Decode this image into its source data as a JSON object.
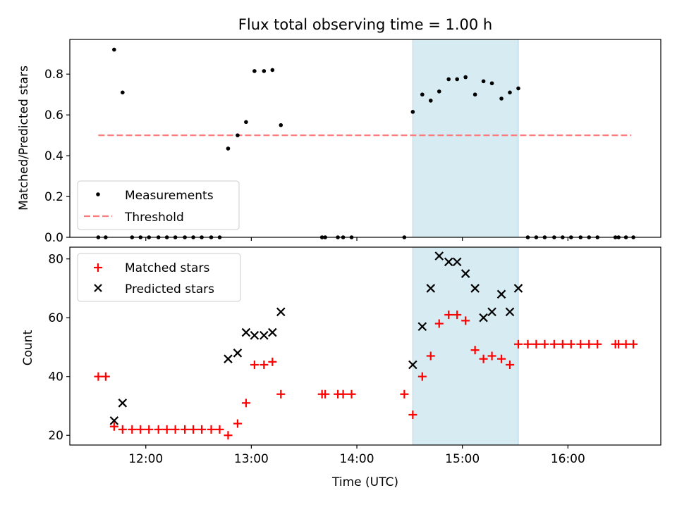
{
  "chart_data": [
    {
      "type": "scatter",
      "title": "Flux total observing time = 1.00 h",
      "xlabel": "",
      "ylabel": "Matched/Predicted stars",
      "ylim": [
        0,
        0.97
      ],
      "xlim_hours": [
        11.28,
        16.88
      ],
      "yticks": [
        0.0,
        0.2,
        0.4,
        0.6,
        0.8
      ],
      "ytick_labels": [
        "0.0",
        "0.2",
        "0.4",
        "0.6",
        "0.8"
      ],
      "highlight_span_hours": [
        14.53,
        15.53
      ],
      "threshold": {
        "name": "Threshold",
        "value": 0.5,
        "x_range_hours": [
          11.55,
          16.6
        ],
        "color": "#ff7a7a"
      },
      "legend": {
        "position": "lower-left",
        "entries": [
          "Measurements",
          "Threshold"
        ]
      },
      "series": [
        {
          "name": "Measurements",
          "color": "#000000",
          "points": [
            [
              11.55,
              0
            ],
            [
              11.62,
              0
            ],
            [
              11.7,
              0.92
            ],
            [
              11.78,
              0.71
            ],
            [
              11.87,
              0
            ],
            [
              11.95,
              0
            ],
            [
              12.03,
              0
            ],
            [
              12.12,
              0
            ],
            [
              12.2,
              0
            ],
            [
              12.28,
              0
            ],
            [
              12.37,
              0
            ],
            [
              12.45,
              0
            ],
            [
              12.53,
              0
            ],
            [
              12.62,
              0
            ],
            [
              12.7,
              0
            ],
            [
              12.78,
              0.435
            ],
            [
              12.87,
              0.5
            ],
            [
              12.95,
              0.565
            ],
            [
              13.03,
              0.815
            ],
            [
              13.12,
              0.815
            ],
            [
              13.2,
              0.82
            ],
            [
              13.28,
              0.55
            ],
            [
              13.67,
              0
            ],
            [
              13.7,
              0
            ],
            [
              13.82,
              0
            ],
            [
              13.87,
              0
            ],
            [
              13.95,
              0
            ],
            [
              14.45,
              0
            ],
            [
              14.53,
              0.615
            ],
            [
              14.62,
              0.7
            ],
            [
              14.7,
              0.67
            ],
            [
              14.78,
              0.715
            ],
            [
              14.87,
              0.775
            ],
            [
              14.95,
              0.775
            ],
            [
              15.03,
              0.785
            ],
            [
              15.12,
              0.7
            ],
            [
              15.2,
              0.765
            ],
            [
              15.28,
              0.755
            ],
            [
              15.37,
              0.68
            ],
            [
              15.45,
              0.71
            ],
            [
              15.53,
              0.73
            ],
            [
              15.62,
              0
            ],
            [
              15.7,
              0
            ],
            [
              15.78,
              0
            ],
            [
              15.87,
              0
            ],
            [
              15.95,
              0
            ],
            [
              16.03,
              0
            ],
            [
              16.12,
              0
            ],
            [
              16.2,
              0
            ],
            [
              16.28,
              0
            ],
            [
              16.45,
              0
            ],
            [
              16.48,
              0
            ],
            [
              16.55,
              0
            ],
            [
              16.62,
              0
            ]
          ]
        }
      ]
    },
    {
      "type": "scatter",
      "title": "",
      "xlabel": "Time (UTC)",
      "ylabel": "Count",
      "ylim": [
        16.7,
        84
      ],
      "xlim_hours": [
        11.28,
        16.88
      ],
      "xticks_hours": [
        12,
        13,
        14,
        15,
        16
      ],
      "xtick_labels": [
        "12:00",
        "13:00",
        "14:00",
        "15:00",
        "16:00"
      ],
      "yticks": [
        20,
        40,
        60,
        80
      ],
      "ytick_labels": [
        "20",
        "40",
        "60",
        "80"
      ],
      "highlight_span_hours": [
        14.53,
        15.53
      ],
      "legend": {
        "position": "top-left",
        "entries": [
          "Matched stars",
          "Predicted stars"
        ]
      },
      "series": [
        {
          "name": "Matched stars",
          "marker": "+",
          "color": "#ff0000",
          "points": [
            [
              11.55,
              40
            ],
            [
              11.62,
              40
            ],
            [
              11.7,
              23
            ],
            [
              11.78,
              22
            ],
            [
              11.87,
              22
            ],
            [
              11.95,
              22
            ],
            [
              12.03,
              22
            ],
            [
              12.12,
              22
            ],
            [
              12.2,
              22
            ],
            [
              12.28,
              22
            ],
            [
              12.37,
              22
            ],
            [
              12.45,
              22
            ],
            [
              12.53,
              22
            ],
            [
              12.62,
              22
            ],
            [
              12.7,
              22
            ],
            [
              12.78,
              20
            ],
            [
              12.87,
              24
            ],
            [
              12.95,
              31
            ],
            [
              13.03,
              44
            ],
            [
              13.12,
              44
            ],
            [
              13.2,
              45
            ],
            [
              13.28,
              34
            ],
            [
              13.67,
              34
            ],
            [
              13.7,
              34
            ],
            [
              13.82,
              34
            ],
            [
              13.87,
              34
            ],
            [
              13.95,
              34
            ],
            [
              14.45,
              34
            ],
            [
              14.53,
              27
            ],
            [
              14.62,
              40
            ],
            [
              14.7,
              47
            ],
            [
              14.78,
              58
            ],
            [
              14.87,
              61
            ],
            [
              14.95,
              61
            ],
            [
              15.03,
              59
            ],
            [
              15.12,
              49
            ],
            [
              15.2,
              46
            ],
            [
              15.28,
              47
            ],
            [
              15.37,
              46
            ],
            [
              15.45,
              44
            ],
            [
              15.53,
              51
            ],
            [
              15.62,
              51
            ],
            [
              15.7,
              51
            ],
            [
              15.78,
              51
            ],
            [
              15.87,
              51
            ],
            [
              15.95,
              51
            ],
            [
              16.03,
              51
            ],
            [
              16.12,
              51
            ],
            [
              16.2,
              51
            ],
            [
              16.28,
              51
            ],
            [
              16.45,
              51
            ],
            [
              16.48,
              51
            ],
            [
              16.55,
              51
            ],
            [
              16.62,
              51
            ]
          ]
        },
        {
          "name": "Predicted stars",
          "marker": "x",
          "color": "#000000",
          "points": [
            [
              11.7,
              25
            ],
            [
              11.78,
              31
            ],
            [
              12.78,
              46
            ],
            [
              12.87,
              48
            ],
            [
              12.95,
              55
            ],
            [
              13.03,
              54
            ],
            [
              13.12,
              54
            ],
            [
              13.2,
              55
            ],
            [
              13.28,
              62
            ],
            [
              14.53,
              44
            ],
            [
              14.62,
              57
            ],
            [
              14.7,
              70
            ],
            [
              14.78,
              81
            ],
            [
              14.87,
              79
            ],
            [
              14.95,
              79
            ],
            [
              15.03,
              75
            ],
            [
              15.12,
              70
            ],
            [
              15.2,
              60
            ],
            [
              15.28,
              62
            ],
            [
              15.37,
              68
            ],
            [
              15.45,
              62
            ],
            [
              15.53,
              70
            ]
          ]
        }
      ]
    }
  ]
}
